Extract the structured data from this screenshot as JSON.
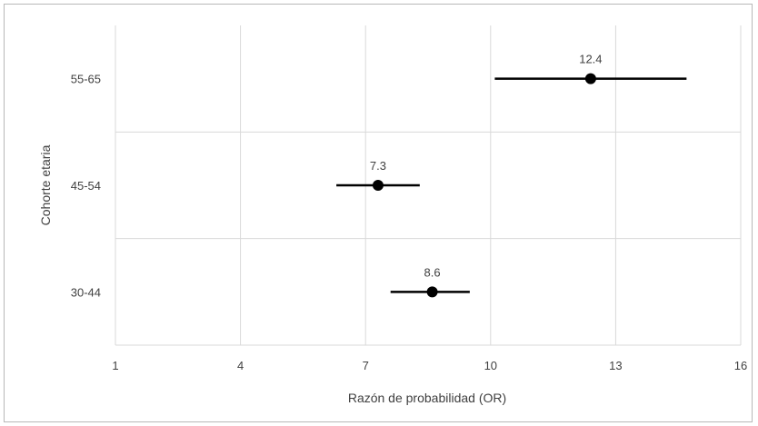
{
  "chart_data": {
    "type": "scatter",
    "orientation": "horizontal",
    "title": "",
    "xlabel": "Razón de probabilidad (OR)",
    "ylabel": "Cohorte etaria",
    "xlim": [
      1,
      16
    ],
    "xticks": [
      1,
      4,
      7,
      10,
      13,
      16
    ],
    "xtick_labels": [
      "1",
      "4",
      "7",
      "10",
      "13",
      "16"
    ],
    "categories": [
      "55-65",
      "45-54",
      "30-44"
    ],
    "values": [
      12.4,
      7.3,
      8.6
    ],
    "value_labels": [
      "12.4",
      "7.3",
      "8.6"
    ],
    "ci_low": [
      10.1,
      6.3,
      7.6
    ],
    "ci_high": [
      14.7,
      8.3,
      9.5
    ],
    "grid": true,
    "legend": "none",
    "colors": {
      "point": "#000000",
      "grid": "#d9d9d9",
      "text": "#404040",
      "border": "#b8b8b8"
    }
  }
}
